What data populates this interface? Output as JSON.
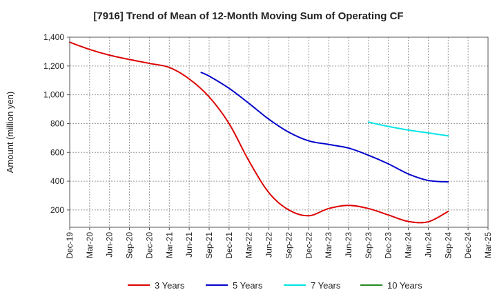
{
  "chart_data": {
    "type": "line",
    "title": "[7916]  Trend of Mean of 12-Month Moving Sum of Operating CF",
    "xlabel": "",
    "ylabel": "Amount (million yen)",
    "ylim": [
      80,
      1400
    ],
    "yticks": [
      200,
      400,
      600,
      800,
      1000,
      1200,
      1400
    ],
    "ytick_labels": [
      "200",
      "400",
      "600",
      "800",
      "1,000",
      "1,200",
      "1,400"
    ],
    "categories": [
      "Dec-19",
      "Mar-20",
      "Jun-20",
      "Sep-20",
      "Dec-20",
      "Mar-21",
      "Jun-21",
      "Sep-21",
      "Dec-21",
      "Mar-22",
      "Jun-22",
      "Sep-22",
      "Dec-22",
      "Mar-23",
      "Jun-23",
      "Sep-23",
      "Dec-23",
      "Mar-24",
      "Jun-24",
      "Sep-24",
      "Dec-24",
      "Mar-25"
    ],
    "grid": true,
    "legend_position": "bottom",
    "series": [
      {
        "name": "3 Years",
        "color": "#dd0000",
        "points": [
          [
            0,
            1365
          ],
          [
            1,
            1315
          ],
          [
            2,
            1275
          ],
          [
            3,
            1245
          ],
          [
            4,
            1218
          ],
          [
            5,
            1190
          ],
          [
            6,
            1110
          ],
          [
            7,
            985
          ],
          [
            8,
            800
          ],
          [
            9,
            540
          ],
          [
            10,
            320
          ],
          [
            11,
            200
          ],
          [
            12,
            160
          ],
          [
            13,
            210
          ],
          [
            14,
            232
          ],
          [
            15,
            210
          ],
          [
            16,
            165
          ],
          [
            17,
            120
          ],
          [
            18,
            118
          ],
          [
            19,
            190
          ]
        ]
      },
      {
        "name": "5 Years",
        "color": "#0000cc",
        "points": [
          [
            6.6,
            1155
          ],
          [
            7,
            1130
          ],
          [
            8,
            1045
          ],
          [
            9,
            940
          ],
          [
            10,
            830
          ],
          [
            11,
            740
          ],
          [
            12,
            680
          ],
          [
            13,
            655
          ],
          [
            14,
            630
          ],
          [
            15,
            580
          ],
          [
            16,
            520
          ],
          [
            17,
            450
          ],
          [
            18,
            405
          ],
          [
            19,
            395
          ]
        ]
      },
      {
        "name": "7 Years",
        "color": "#00e5e5",
        "points": [
          [
            15,
            810
          ],
          [
            16,
            780
          ],
          [
            17,
            755
          ],
          [
            18,
            735
          ],
          [
            19,
            715
          ]
        ]
      },
      {
        "name": "10 Years",
        "color": "#228822",
        "points": []
      }
    ]
  }
}
